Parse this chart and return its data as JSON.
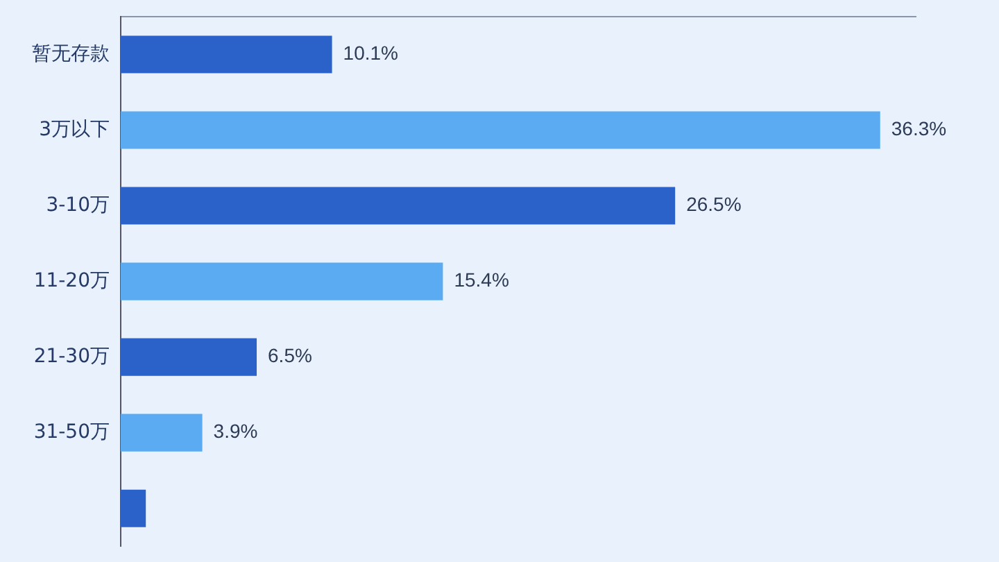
{
  "chart_data": {
    "type": "bar",
    "orientation": "horizontal",
    "categories": [
      "暂无存款",
      "3万以下",
      "3-10万",
      "11-20万",
      "21-30万",
      "31-50万",
      null
    ],
    "values": [
      10.1,
      36.3,
      26.5,
      15.4,
      6.5,
      3.9,
      1.2
    ],
    "colors": [
      "#2a62c9",
      "#5aabf2",
      "#2a62c9",
      "#5aabf2",
      "#2a62c9",
      "#5aabf2",
      "#2a62c9"
    ],
    "value_labels": [
      "10.1%",
      "36.3%",
      "26.5%",
      "15.4%",
      "6.5%",
      "3.9%",
      null
    ],
    "xlim": [
      0,
      38
    ],
    "tick_labels": "y",
    "grid": false,
    "legend": false
  }
}
